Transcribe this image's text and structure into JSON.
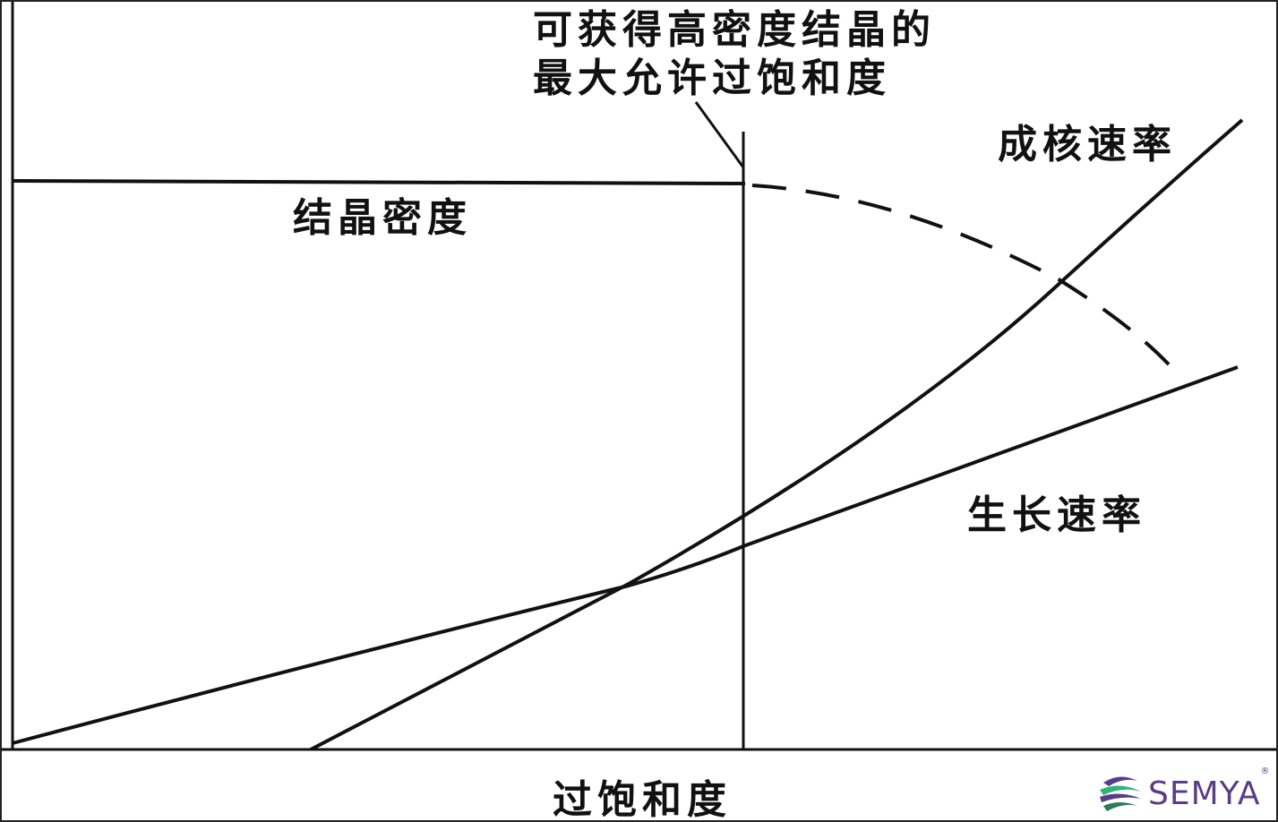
{
  "annotation": {
    "line1": "可获得高密度结晶的",
    "line2": "最大允许过饱和度"
  },
  "labels": {
    "crystal_density": "结晶密度",
    "nucleation_rate": "成核速率",
    "growth_rate": "生长速率",
    "x_axis": "过饱和度"
  },
  "logo": {
    "text": "SEMYA",
    "registered": "®",
    "colors": {
      "purple": "#5a3d86",
      "green": "#2fb57c"
    }
  },
  "colors": {
    "line": "#111111",
    "background": "#ffffff"
  }
}
